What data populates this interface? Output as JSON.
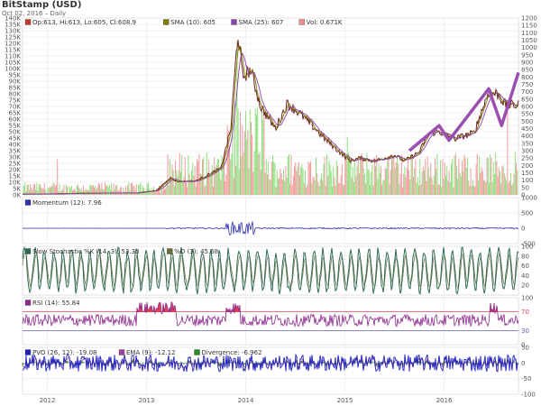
{
  "header": {
    "title": "BitStamp (USD)",
    "subtitle": "Oct 02, 2016 – Daily"
  },
  "colors": {
    "price": "#6b2222",
    "sma10": "#808000",
    "sma25": "#8e44ad",
    "vol_up": "#7fdc6a",
    "vol_down": "#f08c8c",
    "momentum": "#3030b0",
    "stoch": "#2e6b55",
    "rsi": "#8e2a8e",
    "rsi_band": "#e04050",
    "pvo": "#2020c0",
    "pvo_ema": "#a040a0",
    "divergence": "#2a8a2a",
    "grid": "#e6e6e6",
    "overlay": "#9b4fb0"
  },
  "chart_data": [
    {
      "type": "line",
      "name": "price",
      "legend": [
        {
          "label": "Op:613, Hi:613, Lo:605, Cl:608.9",
          "color": "#c0392b"
        },
        {
          "label": "SMA (10): 605",
          "color": "#808000"
        },
        {
          "label": "SMA (25): 607",
          "color": "#8e44ad"
        },
        {
          "label": "Vol: 0.671K",
          "color": "#f08c8c"
        }
      ],
      "left_axis": {
        "ylim": [
          0,
          140000
        ],
        "ticks": [
          "0K",
          "5K",
          "10K",
          "15K",
          "20K",
          "25K",
          "30K",
          "35K",
          "40K",
          "45K",
          "50K",
          "55K",
          "60K",
          "65K",
          "70K",
          "75K",
          "80K",
          "85K",
          "90K",
          "95K",
          "100K",
          "105K",
          "110K",
          "115K",
          "120K",
          "125K",
          "130K",
          "135K",
          "140K"
        ]
      },
      "right_axis": {
        "ylim": [
          0,
          1200
        ],
        "ticks": [
          "0",
          "50",
          "100",
          "150",
          "200",
          "250",
          "300",
          "350",
          "400",
          "450",
          "500",
          "550",
          "600",
          "650",
          "700",
          "750",
          "800",
          "850",
          "900",
          "950",
          "1000",
          "1050",
          "1100",
          "1150",
          "1200"
        ]
      },
      "x": [
        2011.75,
        2012.0,
        2012.3,
        2012.6,
        2012.9,
        2013.1,
        2013.25,
        2013.3,
        2013.5,
        2013.75,
        2013.85,
        2013.92,
        2013.97,
        2014.05,
        2014.15,
        2014.3,
        2014.42,
        2014.55,
        2014.7,
        2014.8,
        2014.9,
        2015.05,
        2015.15,
        2015.3,
        2015.5,
        2015.6,
        2015.75,
        2015.85,
        2015.95,
        2016.1,
        2016.3,
        2016.45,
        2016.55,
        2016.62,
        2016.75
      ],
      "price": [
        5,
        6,
        10,
        12,
        13,
        30,
        120,
        90,
        95,
        180,
        450,
        1100,
        800,
        850,
        600,
        450,
        620,
        550,
        450,
        380,
        320,
        230,
        250,
        230,
        270,
        230,
        290,
        420,
        430,
        380,
        420,
        700,
        680,
        610,
        609
      ],
      "overlay_line": {
        "x": [
          2015.65,
          2015.95,
          2016.05,
          2016.45,
          2016.58,
          2016.75
        ],
        "y": [
          300,
          470,
          370,
          720,
          470,
          830
        ]
      }
    },
    {
      "type": "line",
      "name": "momentum",
      "legend": [
        {
          "label": "Momentum (12): 7.96",
          "color": "#3030b0"
        }
      ],
      "ylim": [
        -500,
        1000
      ],
      "ticks": [
        "1000",
        "500",
        "0",
        "-500"
      ]
    },
    {
      "type": "line",
      "name": "stochastic",
      "legend": [
        {
          "label": "Slow Stochastic %K (14, 3): 53.33",
          "color": "#2e6b55"
        },
        {
          "label": "%D (3): 45.68",
          "color": "#6b6b3a"
        }
      ],
      "ylim": [
        0,
        100
      ],
      "ticks": [
        "100",
        "80",
        "60",
        "40",
        "20"
      ]
    },
    {
      "type": "line",
      "name": "rsi",
      "legend": [
        {
          "label": "RSI (14): 55.84",
          "color": "#8e2a8e"
        }
      ],
      "ylim": [
        0,
        100
      ],
      "ticks": [
        "100",
        "70",
        "30",
        "0"
      ],
      "levels": [
        70,
        30
      ]
    },
    {
      "type": "line",
      "name": "pvo",
      "legend": [
        {
          "label": "PVO (26, 12): -19.08",
          "color": "#2020c0"
        },
        {
          "label": "EMA (9): -12.12",
          "color": "#a040a0"
        },
        {
          "label": "Divergence: -6.962",
          "color": "#2a8a2a"
        }
      ],
      "ylim": [
        -100,
        50
      ],
      "ticks": [
        "50",
        "0",
        "-50",
        "-100"
      ]
    }
  ],
  "x_axis": {
    "range": [
      2011.75,
      2016.75
    ],
    "ticks": [
      {
        "label": "2012",
        "x": 2012
      },
      {
        "label": "2013",
        "x": 2013
      },
      {
        "label": "2014",
        "x": 2014
      },
      {
        "label": "2015",
        "x": 2015
      },
      {
        "label": "2016",
        "x": 2016
      }
    ]
  }
}
